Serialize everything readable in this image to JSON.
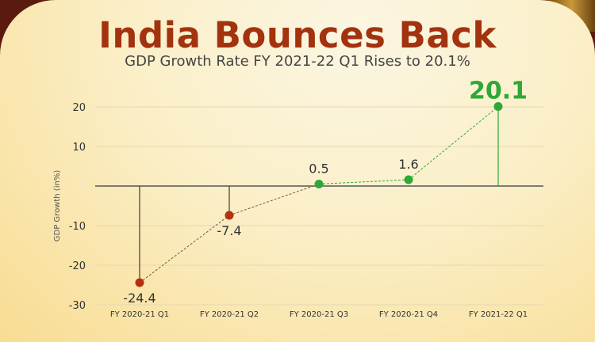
{
  "title": "India Bounces Back",
  "subtitle": "GDP Growth Rate FY 2021-22 Q1 Rises to 20.1%",
  "colors": {
    "negative": "#b5300f",
    "positive": "#2ea836",
    "title": "#a3320f"
  },
  "chart_data": {
    "type": "line",
    "title": "India Bounces Back",
    "subtitle": "GDP Growth Rate FY 2021-22 Q1 Rises to 20.1%",
    "xlabel": "",
    "ylabel": "GDP Growth (in%)",
    "ylim": [
      -30,
      20
    ],
    "yticks": [
      20,
      10,
      0,
      -10,
      -20,
      -30
    ],
    "ytick_labels": [
      "20",
      "10",
      "0",
      "-10",
      "-20",
      "-30"
    ],
    "grid": true,
    "categories": [
      "FY 2020-21 Q1",
      "FY 2020-21 Q2",
      "FY 2020-21 Q3",
      "FY 2020-21 Q4",
      "FY 2021-22 Q1"
    ],
    "values": [
      -24.4,
      -7.4,
      0.5,
      1.6,
      20.1
    ],
    "data_labels": [
      "-24.4",
      "-7.4",
      "0.5",
      "1.6",
      "20.1"
    ]
  }
}
